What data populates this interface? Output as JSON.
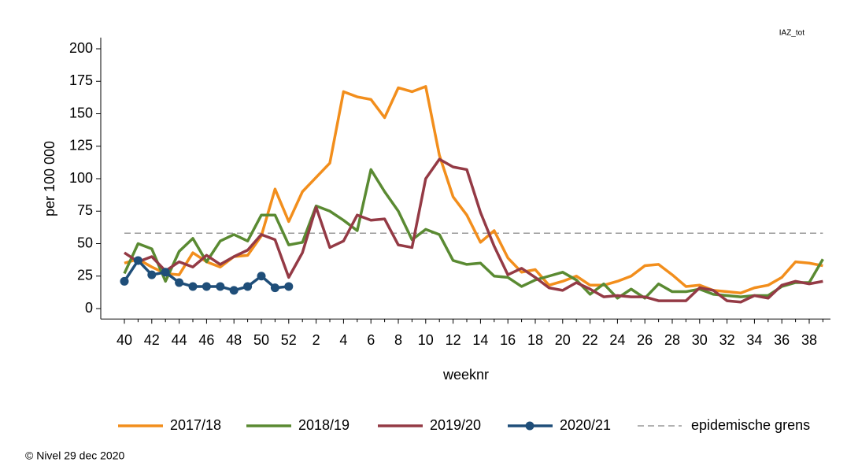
{
  "chart_data": {
    "type": "line",
    "tag": "IAZ_tot",
    "ylabel": "per 100 000",
    "xlabel": "weeknr",
    "footer": "© Nivel 29 dec 2020",
    "categories": [
      "40",
      null,
      "42",
      null,
      "44",
      null,
      "46",
      null,
      "48",
      null,
      "50",
      null,
      "52",
      null,
      "2",
      null,
      "4",
      null,
      "6",
      null,
      "8",
      null,
      "10",
      null,
      "12",
      null,
      "14",
      null,
      "16",
      null,
      "18",
      null,
      "20",
      null,
      "22",
      null,
      "24",
      null,
      "26",
      null,
      "28",
      null,
      "30",
      null,
      "32",
      null,
      "34",
      null,
      "36",
      null,
      "38",
      null
    ],
    "ylim": [
      -8,
      205
    ],
    "yticks": [
      0,
      25,
      50,
      75,
      100,
      125,
      150,
      175,
      200
    ],
    "grid": false,
    "series": [
      {
        "name": "2017/18",
        "color": "#f28e1c",
        "values": [
          35,
          38,
          32,
          27,
          26,
          43,
          36,
          32,
          40,
          41,
          56,
          92,
          67,
          90,
          101,
          112,
          167,
          163,
          161,
          147,
          170,
          167,
          171,
          118,
          86,
          72,
          51,
          60,
          39,
          28,
          30,
          18,
          21,
          25,
          18,
          18,
          21,
          25,
          33,
          34,
          26,
          17,
          18,
          14,
          13,
          12,
          16,
          18,
          24,
          36,
          35,
          33
        ]
      },
      {
        "name": "2018/19",
        "color": "#5a8a32",
        "values": [
          27,
          50,
          46,
          21,
          44,
          54,
          36,
          52,
          57,
          52,
          72,
          72,
          49,
          51,
          79,
          75,
          68,
          60,
          107,
          90,
          75,
          53,
          61,
          57,
          37,
          34,
          35,
          25,
          24,
          17,
          22,
          25,
          28,
          22,
          11,
          19,
          8,
          15,
          8,
          19,
          13,
          13,
          15,
          11,
          10,
          9,
          10,
          10,
          17,
          20,
          20,
          38
        ]
      },
      {
        "name": "2019/20",
        "color": "#943a45",
        "values": [
          43,
          36,
          40,
          29,
          36,
          32,
          41,
          34,
          40,
          45,
          57,
          53,
          24,
          43,
          78,
          47,
          52,
          72,
          68,
          69,
          49,
          47,
          100,
          115,
          109,
          107,
          74,
          48,
          26,
          31,
          24,
          16,
          14,
          20,
          15,
          9,
          10,
          9,
          9,
          6,
          6,
          6,
          16,
          14,
          6,
          5,
          10,
          8,
          18,
          21,
          19,
          21
        ]
      },
      {
        "name": "2020/21",
        "color": "#1f4e79",
        "markers": true,
        "values": [
          21,
          37,
          26,
          28,
          20,
          17,
          17,
          17,
          14,
          17,
          25,
          16,
          17,
          null,
          null,
          null,
          null,
          null,
          null,
          null,
          null,
          null,
          null,
          null,
          null,
          null,
          null,
          null,
          null,
          null,
          null,
          null,
          null,
          null,
          null,
          null,
          null,
          null,
          null,
          null,
          null,
          null,
          null,
          null,
          null,
          null,
          null,
          null,
          null,
          null,
          null,
          null
        ]
      }
    ],
    "reference_line": {
      "name": "epidemische grens",
      "value": 58,
      "color": "#999999"
    }
  }
}
